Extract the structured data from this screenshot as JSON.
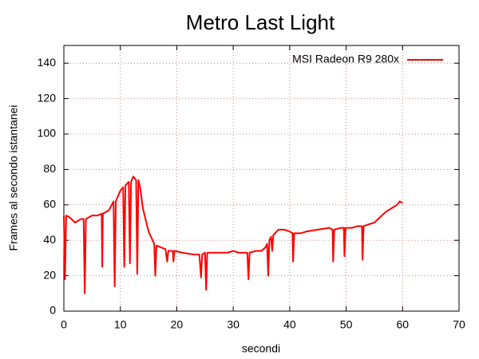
{
  "chart_data": {
    "type": "line",
    "title": "Metro Last Light",
    "xlabel": "secondi",
    "ylabel": "Frames al secondo istantanei",
    "x": [
      0,
      0.2,
      0.4,
      1,
      2,
      3,
      3.5,
      3.7,
      3.9,
      5,
      6,
      6.7,
      6.8,
      6.9,
      8,
      8.8,
      9,
      9.2,
      10,
      10.5,
      10.7,
      10.9,
      11.5,
      11.7,
      11.9,
      12.3,
      12.8,
      13,
      13.2,
      13.5,
      14,
      15,
      16,
      16.2,
      16.4,
      18,
      18.3,
      18.5,
      19.3,
      19.4,
      19.6,
      21,
      23,
      24,
      24.3,
      24.5,
      25,
      25.2,
      25.4,
      27,
      29,
      30,
      31,
      32,
      32.5,
      32.7,
      32.9,
      34,
      35,
      35.7,
      36,
      36.2,
      36.4,
      36.7,
      36.9,
      37.1,
      38,
      39,
      40,
      40.5,
      40.6,
      40.8,
      42,
      43,
      45,
      47,
      47.6,
      47.7,
      47.9,
      49,
      49.6,
      49.7,
      49.9,
      51,
      52,
      52.8,
      52.9,
      53.1,
      54,
      55,
      56,
      57,
      58,
      59,
      59.5,
      60
    ],
    "series": [
      {
        "name": "MSI Radeon R9 280x",
        "color": "#ff0000",
        "values": [
          54,
          18,
          54,
          53,
          50,
          52,
          52,
          10,
          52,
          54,
          54,
          55,
          25,
          55,
          57,
          62,
          14,
          62,
          68,
          70,
          25,
          71,
          73,
          27,
          73,
          76,
          74,
          21,
          74,
          70,
          58,
          45,
          38,
          20,
          37,
          35,
          28,
          34,
          34,
          28,
          34,
          33,
          32,
          32,
          19,
          32,
          33,
          12,
          33,
          33,
          33,
          34,
          33,
          33,
          33,
          18,
          33,
          34,
          34,
          36,
          38,
          20,
          40,
          42,
          34,
          43,
          46,
          46,
          45,
          44,
          28,
          44,
          44,
          45,
          46,
          47,
          46,
          28,
          46,
          47,
          47,
          31,
          47,
          47,
          48,
          48,
          29,
          48,
          49,
          50,
          53,
          56,
          58,
          60,
          62,
          61
        ]
      }
    ],
    "xlim": [
      0,
      70
    ],
    "xticks": [
      0,
      10,
      20,
      30,
      40,
      50,
      60,
      70
    ],
    "ylim": [
      0,
      150
    ],
    "yticks": [
      0,
      20,
      40,
      60,
      80,
      100,
      120,
      140
    ],
    "grid": true,
    "legend": "top-right"
  }
}
